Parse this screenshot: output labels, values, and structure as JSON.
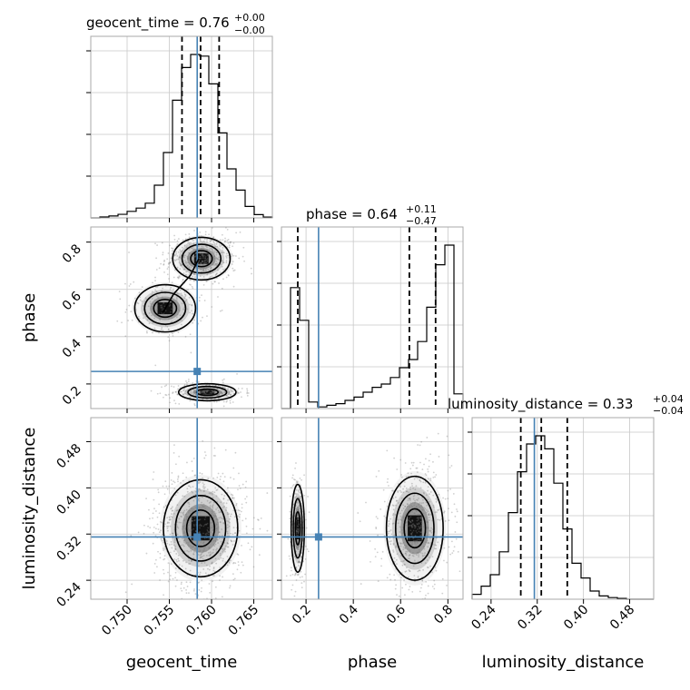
{
  "chart_data": {
    "type": "corner",
    "parameters": [
      "geocent_time",
      "phase",
      "luminosity_distance"
    ],
    "ranges": {
      "geocent_time": [
        0.7457,
        0.7672
      ],
      "phase": [
        0.096,
        0.864
      ],
      "luminosity_distance": [
        0.2072,
        0.5216
      ]
    },
    "ticks": {
      "geocent_time": [
        "0.750",
        "0.755",
        "0.760",
        "0.765"
      ],
      "phase": [
        "0.2",
        "0.4",
        "0.6",
        "0.8"
      ],
      "luminosity_distance": [
        "0.24",
        "0.32",
        "0.40",
        "0.48"
      ]
    },
    "titles": {
      "geocent_time": {
        "main": "geocent_time = 0.76",
        "plus": "+0.00",
        "minus": "−0.00"
      },
      "phase": {
        "main": "phase = 0.64",
        "plus": "+0.11",
        "minus": "−0.47"
      },
      "luminosity_distance": {
        "main": "luminosity_distance = 0.33",
        "plus": "+0.04",
        "minus": "−0.04"
      }
    },
    "truths": {
      "geocent_time": 0.7583,
      "phase": 0.253,
      "luminosity_distance": 0.315
    },
    "quantiles": {
      "geocent_time": [
        0.7565,
        0.7587,
        0.7609
      ],
      "phase": [
        0.165,
        0.637,
        0.748
      ],
      "luminosity_distance": [
        0.2915,
        0.327,
        0.372
      ]
    },
    "histograms": {
      "geocent_time": [
        0,
        0.006,
        0.012,
        0.022,
        0.04,
        0.06,
        0.09,
        0.2,
        0.4,
        0.72,
        0.92,
        1.0,
        0.99,
        0.82,
        0.52,
        0.3,
        0.17,
        0.07,
        0.02,
        0.005
      ],
      "phase": [
        0,
        0.74,
        0.54,
        0.04,
        0.01,
        0.02,
        0.03,
        0.05,
        0.07,
        0.1,
        0.13,
        0.15,
        0.19,
        0.25,
        0.3,
        0.41,
        0.62,
        0.88,
        1.0,
        0.09
      ],
      "luminosity_distance": [
        0.03,
        0.08,
        0.15,
        0.29,
        0.53,
        0.78,
        0.95,
        1.0,
        0.92,
        0.71,
        0.43,
        0.22,
        0.13,
        0.05,
        0.02,
        0.01,
        0.005,
        0,
        0,
        0
      ]
    },
    "grid": true
  }
}
